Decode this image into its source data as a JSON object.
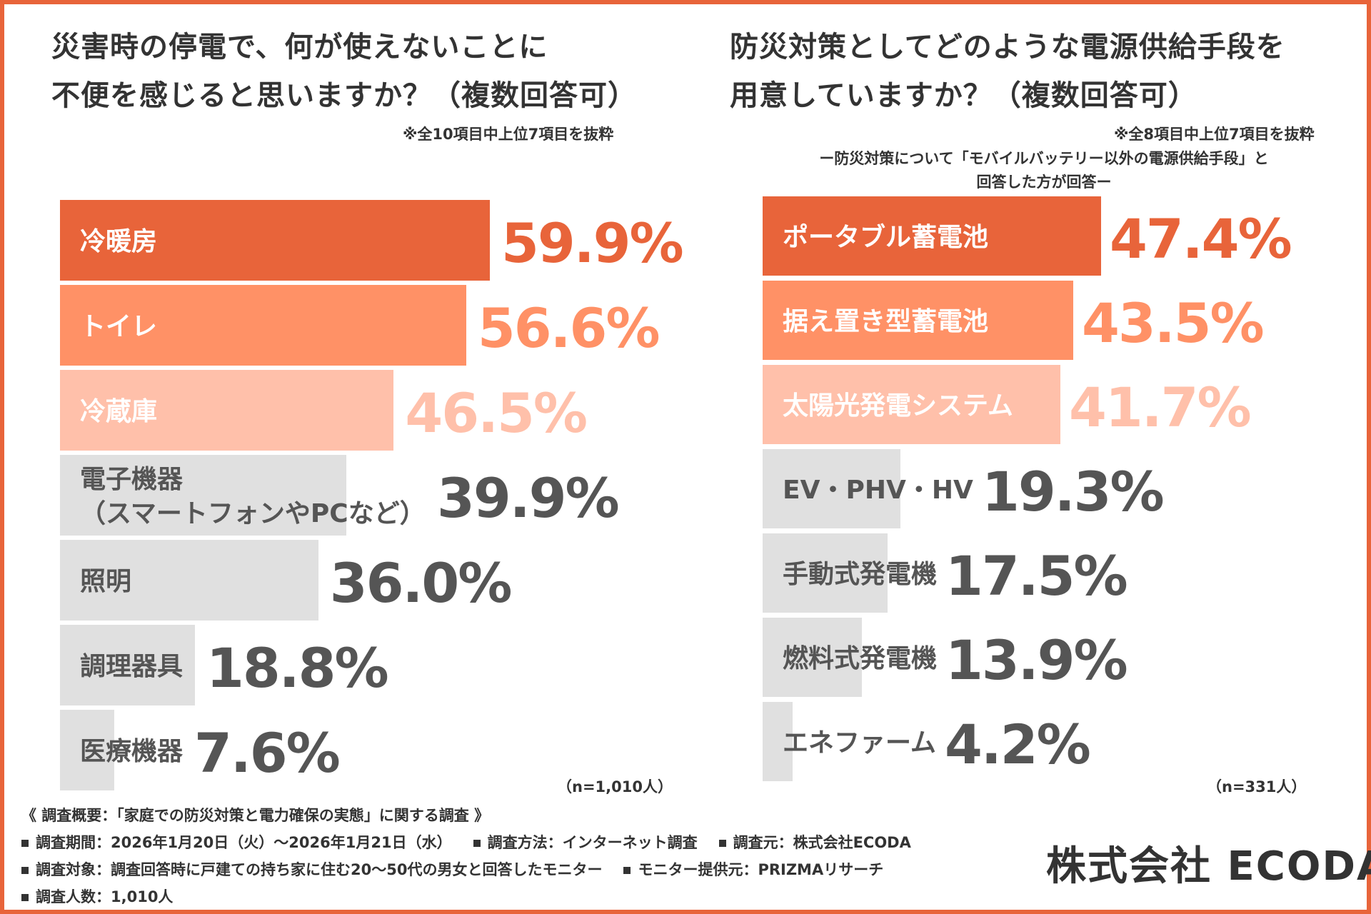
{
  "left": {
    "title_line1": "災害時の停電で、何が使えないことに",
    "title_line2": "不便を感じると思いますか？（複数回答可）",
    "note": "※全10項目中上位7項目を抜粋",
    "sample": "（n=1,010人）"
  },
  "right": {
    "title_line1": "防災対策としてどのような電源供給手段を",
    "title_line2": "用意していますか？（複数回答可）",
    "note": "※全8項目中上位7項目を抜粋",
    "sub_note_line1": "ー防災対策について「モバイルバッテリー以外の電源供給手段」と",
    "sub_note_line2": "回答した方が回答ー",
    "sample": "（n=331人）"
  },
  "colors": {
    "rank1": "#e8643a",
    "rank2": "#ff9166",
    "rank3": "#ffc0aa",
    "other": "#e0e0e0",
    "other_text": "#555555",
    "frame": "#e8643a"
  },
  "chart_data": [
    {
      "type": "bar",
      "orientation": "horizontal",
      "categories": [
        "冷暖房",
        "トイレ",
        "冷蔵庫",
        "電子機器（スマートフォンやPCなど）",
        "照明",
        "調理器具",
        "医療機器"
      ],
      "label_lines": [
        [
          "冷暖房"
        ],
        [
          "トイレ"
        ],
        [
          "冷蔵庫"
        ],
        [
          "電子機器",
          "（スマートフォンやPCなど）"
        ],
        [
          "照明"
        ],
        [
          "調理器具"
        ],
        [
          "医療機器"
        ]
      ],
      "values": [
        59.9,
        56.6,
        46.5,
        39.9,
        36.0,
        18.8,
        7.6
      ],
      "value_labels": [
        "59.9%",
        "56.6%",
        "46.5%",
        "39.9%",
        "36.0%",
        "18.8%",
        "7.6%"
      ],
      "unit": "%",
      "xlim": [
        0,
        100
      ],
      "grid": false
    },
    {
      "type": "bar",
      "orientation": "horizontal",
      "categories": [
        "ポータブル蓄電池",
        "据え置き型蓄電池",
        "太陽光発電システム",
        "EV・PHV・HV",
        "手動式発電機",
        "燃料式発電機",
        "エネファーム"
      ],
      "label_lines": [
        [
          "ポータブル蓄電池"
        ],
        [
          "据え置き型蓄電池"
        ],
        [
          "太陽光発電システム"
        ],
        [
          "EV・PHV・HV"
        ],
        [
          "手動式発電機"
        ],
        [
          "燃料式発電機"
        ],
        [
          "エネファーム"
        ]
      ],
      "values": [
        47.4,
        43.5,
        41.7,
        19.3,
        17.5,
        13.9,
        4.2
      ],
      "value_labels": [
        "47.4%",
        "43.5%",
        "41.7%",
        "19.3%",
        "17.5%",
        "13.9%",
        "4.2%"
      ],
      "unit": "%",
      "xlim": [
        0,
        100
      ],
      "grid": false
    }
  ],
  "footer": {
    "overview": "《 調査概要：「家庭での防災対策と電力確保の実態」に関する調査 》",
    "period": "調査期間：2026年1月20日（火）～2026年1月21日（水）",
    "method": "調査方法：インターネット調査",
    "source": "調査元：株式会社ECODA",
    "target": "調査対象：調査回答時に戸建ての持ち家に住む20～50代の男女と回答したモニター",
    "provider": "モニター提供元：PRIZMAリサーチ",
    "count": "調査人数：1,010人",
    "logo": "株式会社 ECODA"
  }
}
